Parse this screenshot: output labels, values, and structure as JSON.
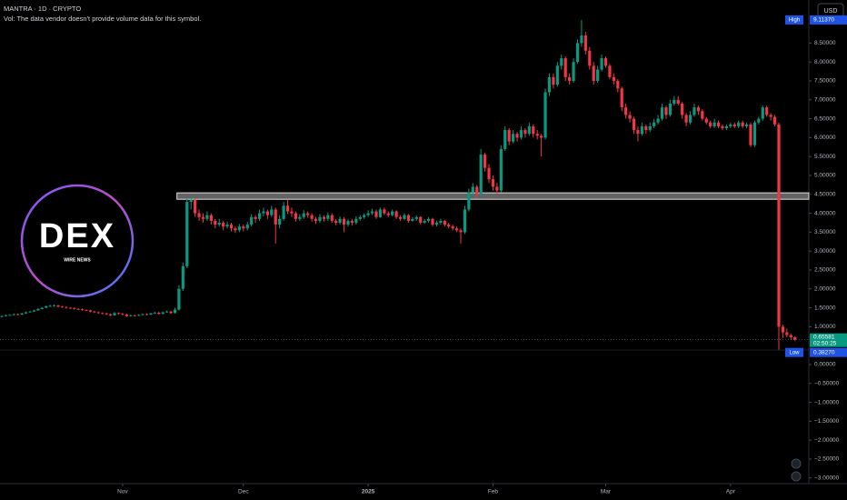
{
  "chart_data": {
    "type": "candlestick",
    "title": "MANTRA · 1D · CRYPTO",
    "subtitle": "Vol: The data vendor doesn't provide volume data for this symbol.",
    "currency": "USD",
    "watermark": {
      "title": "DEX",
      "subtitle": "WIRE NEWS"
    },
    "up_color": "#089981",
    "down_color": "#f23645",
    "grid": false,
    "ylim": [
      -3.15,
      9.64
    ],
    "yticks": [
      {
        "value": -3,
        "label": "−3.00000"
      },
      {
        "value": -2.5,
        "label": "−2.50000"
      },
      {
        "value": -2,
        "label": "−2.00000"
      },
      {
        "value": -1.5,
        "label": "−1.50000"
      },
      {
        "value": -1,
        "label": "−1.00000"
      },
      {
        "value": -0.5,
        "label": "−0.50000"
      },
      {
        "value": 0,
        "label": "0.00000"
      },
      {
        "value": 1,
        "label": "1.00000"
      },
      {
        "value": 1.5,
        "label": "1.50000"
      },
      {
        "value": 2,
        "label": "2.00000"
      },
      {
        "value": 2.5,
        "label": "2.50000"
      },
      {
        "value": 3,
        "label": "3.00000"
      },
      {
        "value": 3.5,
        "label": "3.50000"
      },
      {
        "value": 4,
        "label": "4.00000"
      },
      {
        "value": 4.5,
        "label": "4.50000"
      },
      {
        "value": 5,
        "label": "5.00000"
      },
      {
        "value": 5.5,
        "label": "5.50000"
      },
      {
        "value": 6,
        "label": "6.00000"
      },
      {
        "value": 6.5,
        "label": "6.50000"
      },
      {
        "value": 7,
        "label": "7.00000"
      },
      {
        "value": 7.5,
        "label": "7.50000"
      },
      {
        "value": 8,
        "label": "8.00000"
      },
      {
        "value": 8.5,
        "label": "8.50000"
      }
    ],
    "xticks": [
      {
        "value": 30,
        "label": "Nov"
      },
      {
        "value": 60,
        "label": "Dec"
      },
      {
        "value": 91,
        "label": "2025"
      },
      {
        "value": 122,
        "label": "Feb"
      },
      {
        "value": 150,
        "label": "Mar"
      },
      {
        "value": 181,
        "label": "Apr"
      }
    ],
    "zone": [
      4.37,
      4.54
    ],
    "high": {
      "name": "High",
      "value": 9.1137,
      "label": "9.11370"
    },
    "low": {
      "name": "Low",
      "value": 0.3827,
      "label": "0.38270"
    },
    "last": {
      "value": 0.65581,
      "label": "0.65581",
      "countdown": "02:50:25"
    },
    "candles": [
      [
        1.27,
        1.3,
        1.25,
        1.28
      ],
      [
        1.28,
        1.32,
        1.27,
        1.3
      ],
      [
        1.3,
        1.33,
        1.29,
        1.31
      ],
      [
        1.31,
        1.35,
        1.3,
        1.33
      ],
      [
        1.33,
        1.35,
        1.3,
        1.32
      ],
      [
        1.32,
        1.37,
        1.31,
        1.35
      ],
      [
        1.35,
        1.4,
        1.34,
        1.38
      ],
      [
        1.38,
        1.42,
        1.37,
        1.4
      ],
      [
        1.4,
        1.45,
        1.39,
        1.43
      ],
      [
        1.43,
        1.49,
        1.42,
        1.47
      ],
      [
        1.47,
        1.52,
        1.46,
        1.5
      ],
      [
        1.5,
        1.56,
        1.49,
        1.54
      ],
      [
        1.54,
        1.58,
        1.52,
        1.55
      ],
      [
        1.55,
        1.59,
        1.53,
        1.56
      ],
      [
        1.56,
        1.58,
        1.51,
        1.53
      ],
      [
        1.53,
        1.55,
        1.5,
        1.52
      ],
      [
        1.52,
        1.54,
        1.48,
        1.5
      ],
      [
        1.5,
        1.52,
        1.47,
        1.49
      ],
      [
        1.49,
        1.51,
        1.45,
        1.47
      ],
      [
        1.47,
        1.49,
        1.44,
        1.46
      ],
      [
        1.46,
        1.48,
        1.42,
        1.44
      ],
      [
        1.44,
        1.46,
        1.41,
        1.43
      ],
      [
        1.43,
        1.45,
        1.38,
        1.4
      ],
      [
        1.4,
        1.42,
        1.36,
        1.38
      ],
      [
        1.38,
        1.4,
        1.34,
        1.36
      ],
      [
        1.36,
        1.38,
        1.33,
        1.35
      ],
      [
        1.35,
        1.37,
        1.31,
        1.33
      ],
      [
        1.33,
        1.35,
        1.28,
        1.3
      ],
      [
        1.3,
        1.39,
        1.29,
        1.36
      ],
      [
        1.36,
        1.38,
        1.32,
        1.34
      ],
      [
        1.34,
        1.36,
        1.3,
        1.32
      ],
      [
        1.32,
        1.34,
        1.26,
        1.28
      ],
      [
        1.28,
        1.32,
        1.27,
        1.3
      ],
      [
        1.3,
        1.32,
        1.27,
        1.29
      ],
      [
        1.29,
        1.33,
        1.28,
        1.31
      ],
      [
        1.31,
        1.35,
        1.3,
        1.33
      ],
      [
        1.33,
        1.35,
        1.3,
        1.32
      ],
      [
        1.32,
        1.37,
        1.31,
        1.35
      ],
      [
        1.35,
        1.4,
        1.34,
        1.37
      ],
      [
        1.37,
        1.39,
        1.32,
        1.34
      ],
      [
        1.34,
        1.4,
        1.33,
        1.38
      ],
      [
        1.38,
        1.43,
        1.37,
        1.4
      ],
      [
        1.4,
        1.42,
        1.34,
        1.36
      ],
      [
        1.36,
        1.5,
        1.35,
        1.45
      ],
      [
        1.45,
        2.1,
        1.43,
        2.0
      ],
      [
        2.0,
        2.7,
        1.95,
        2.6
      ],
      [
        2.6,
        4.4,
        2.55,
        4.3
      ],
      [
        4.3,
        4.45,
        4.1,
        4.35
      ],
      [
        4.35,
        4.4,
        3.9,
        4.0
      ],
      [
        4.0,
        4.1,
        3.8,
        3.9
      ],
      [
        3.9,
        4.0,
        3.75,
        3.85
      ],
      [
        3.85,
        4.05,
        3.8,
        3.95
      ],
      [
        3.95,
        4.0,
        3.7,
        3.8
      ],
      [
        3.8,
        3.85,
        3.6,
        3.7
      ],
      [
        3.7,
        3.85,
        3.65,
        3.75
      ],
      [
        3.75,
        3.8,
        3.55,
        3.65
      ],
      [
        3.65,
        3.78,
        3.6,
        3.7
      ],
      [
        3.7,
        3.75,
        3.52,
        3.6
      ],
      [
        3.6,
        3.65,
        3.48,
        3.55
      ],
      [
        3.55,
        3.72,
        3.5,
        3.65
      ],
      [
        3.65,
        3.7,
        3.52,
        3.6
      ],
      [
        3.6,
        3.78,
        3.55,
        3.7
      ],
      [
        3.7,
        3.98,
        3.65,
        3.9
      ],
      [
        3.9,
        3.95,
        3.75,
        3.85
      ],
      [
        3.85,
        4.1,
        3.8,
        4.0
      ],
      [
        4.0,
        4.15,
        3.92,
        4.05
      ],
      [
        4.05,
        4.1,
        3.85,
        3.95
      ],
      [
        3.95,
        4.2,
        3.9,
        4.1
      ],
      [
        4.1,
        4.15,
        3.2,
        3.7
      ],
      [
        3.7,
        3.95,
        3.6,
        3.85
      ],
      [
        3.85,
        4.3,
        3.8,
        4.2
      ],
      [
        4.2,
        4.35,
        3.98,
        4.05
      ],
      [
        4.05,
        4.15,
        3.9,
        4.0
      ],
      [
        4.0,
        4.05,
        3.78,
        3.85
      ],
      [
        3.85,
        3.98,
        3.8,
        3.9
      ],
      [
        3.9,
        4.08,
        3.85,
        4.0
      ],
      [
        4.0,
        4.05,
        3.88,
        3.95
      ],
      [
        3.95,
        4.0,
        3.78,
        3.85
      ],
      [
        3.85,
        3.9,
        3.72,
        3.8
      ],
      [
        3.8,
        3.98,
        3.75,
        3.9
      ],
      [
        3.9,
        3.95,
        3.78,
        3.85
      ],
      [
        3.85,
        4.02,
        3.8,
        3.95
      ],
      [
        3.95,
        4.0,
        3.75,
        3.8
      ],
      [
        3.8,
        3.85,
        3.68,
        3.75
      ],
      [
        3.75,
        3.92,
        3.7,
        3.85
      ],
      [
        3.85,
        3.9,
        3.5,
        3.7
      ],
      [
        3.7,
        3.85,
        3.65,
        3.8
      ],
      [
        3.8,
        3.85,
        3.68,
        3.75
      ],
      [
        3.75,
        3.92,
        3.7,
        3.85
      ],
      [
        3.85,
        3.95,
        3.8,
        3.9
      ],
      [
        3.9,
        4.0,
        3.85,
        3.95
      ],
      [
        3.95,
        4.08,
        3.9,
        4.0
      ],
      [
        4.0,
        4.12,
        3.95,
        4.05
      ],
      [
        4.05,
        4.1,
        3.85,
        3.9
      ],
      [
        3.9,
        4.15,
        3.88,
        4.1
      ],
      [
        4.1,
        4.15,
        3.95,
        4.0
      ],
      [
        4.0,
        4.05,
        3.9,
        3.95
      ],
      [
        3.95,
        4.1,
        3.92,
        4.05
      ],
      [
        4.05,
        4.08,
        3.85,
        3.9
      ],
      [
        3.9,
        3.95,
        3.8,
        3.85
      ],
      [
        3.85,
        4.0,
        3.82,
        3.95
      ],
      [
        3.95,
        3.98,
        3.75,
        3.8
      ],
      [
        3.8,
        3.9,
        3.78,
        3.85
      ],
      [
        3.85,
        3.95,
        3.8,
        3.9
      ],
      [
        3.9,
        3.92,
        3.7,
        3.75
      ],
      [
        3.75,
        3.85,
        3.72,
        3.8
      ],
      [
        3.8,
        3.9,
        3.75,
        3.85
      ],
      [
        3.85,
        3.88,
        3.65,
        3.7
      ],
      [
        3.7,
        3.8,
        3.65,
        3.75
      ],
      [
        3.75,
        3.85,
        3.7,
        3.8
      ],
      [
        3.8,
        3.82,
        3.65,
        3.7
      ],
      [
        3.7,
        3.75,
        3.6,
        3.65
      ],
      [
        3.65,
        3.7,
        3.55,
        3.6
      ],
      [
        3.6,
        3.65,
        3.5,
        3.55
      ],
      [
        3.55,
        3.6,
        3.2,
        3.5
      ],
      [
        3.5,
        4.2,
        3.45,
        4.1
      ],
      [
        4.1,
        4.65,
        4.05,
        4.55
      ],
      [
        4.55,
        4.8,
        4.45,
        4.7
      ],
      [
        4.7,
        4.75,
        4.4,
        4.5
      ],
      [
        4.5,
        5.7,
        4.45,
        5.55
      ],
      [
        5.55,
        5.6,
        5.1,
        5.2
      ],
      [
        5.2,
        5.3,
        4.8,
        4.9
      ],
      [
        4.9,
        5.0,
        4.6,
        4.7
      ],
      [
        4.7,
        4.8,
        4.5,
        4.6
      ],
      [
        4.6,
        5.8,
        4.55,
        5.7
      ],
      [
        5.7,
        6.3,
        5.65,
        6.2
      ],
      [
        6.2,
        6.25,
        5.8,
        5.9
      ],
      [
        5.9,
        6.2,
        5.85,
        6.1
      ],
      [
        6.1,
        6.15,
        5.9,
        6.0
      ],
      [
        6.0,
        6.3,
        5.95,
        6.2
      ],
      [
        6.2,
        6.25,
        6.0,
        6.1
      ],
      [
        6.1,
        6.4,
        6.05,
        6.3
      ],
      [
        6.3,
        6.35,
        6.0,
        6.1
      ],
      [
        6.1,
        6.2,
        5.95,
        6.05
      ],
      [
        6.05,
        6.1,
        5.5,
        6.0
      ],
      [
        6.0,
        7.3,
        5.95,
        7.2
      ],
      [
        7.2,
        7.7,
        7.1,
        7.6
      ],
      [
        7.6,
        7.7,
        7.3,
        7.4
      ],
      [
        7.4,
        8.0,
        7.35,
        7.9
      ],
      [
        7.9,
        8.2,
        7.8,
        8.1
      ],
      [
        8.1,
        8.15,
        7.5,
        7.6
      ],
      [
        7.6,
        7.7,
        7.4,
        7.5
      ],
      [
        7.5,
        8.1,
        7.45,
        8.0
      ],
      [
        8.0,
        8.6,
        7.95,
        8.5
      ],
      [
        8.5,
        9.1137,
        8.4,
        8.7
      ],
      [
        8.7,
        8.8,
        8.2,
        8.3
      ],
      [
        8.3,
        8.4,
        7.8,
        7.9
      ],
      [
        7.9,
        8.0,
        7.4,
        7.5
      ],
      [
        7.5,
        7.9,
        7.45,
        7.8
      ],
      [
        7.8,
        8.2,
        7.75,
        8.1
      ],
      [
        8.1,
        8.15,
        7.85,
        7.9
      ],
      [
        7.9,
        7.95,
        7.55,
        7.6
      ],
      [
        7.6,
        7.7,
        7.4,
        7.5
      ],
      [
        7.5,
        7.55,
        7.2,
        7.3
      ],
      [
        7.3,
        7.35,
        6.7,
        6.8
      ],
      [
        6.8,
        6.9,
        6.5,
        6.6
      ],
      [
        6.6,
        6.7,
        6.4,
        6.5
      ],
      [
        6.5,
        6.55,
        6.1,
        6.2
      ],
      [
        6.2,
        6.3,
        5.9,
        6.1
      ],
      [
        6.1,
        6.4,
        6.05,
        6.3
      ],
      [
        6.3,
        6.35,
        6.1,
        6.2
      ],
      [
        6.2,
        6.4,
        6.15,
        6.3
      ],
      [
        6.3,
        6.5,
        6.25,
        6.4
      ],
      [
        6.4,
        6.6,
        6.35,
        6.5
      ],
      [
        6.5,
        6.9,
        6.45,
        6.8
      ],
      [
        6.8,
        6.85,
        6.5,
        6.6
      ],
      [
        6.6,
        7.0,
        6.55,
        6.9
      ],
      [
        6.9,
        7.1,
        6.85,
        7.0
      ],
      [
        7.0,
        7.1,
        6.85,
        6.9
      ],
      [
        6.9,
        6.95,
        6.5,
        6.6
      ],
      [
        6.6,
        6.65,
        6.3,
        6.4
      ],
      [
        6.4,
        6.7,
        6.35,
        6.6
      ],
      [
        6.6,
        6.9,
        6.55,
        6.8
      ],
      [
        6.8,
        6.85,
        6.6,
        6.7
      ],
      [
        6.7,
        6.75,
        6.45,
        6.5
      ],
      [
        6.5,
        6.55,
        6.35,
        6.4
      ],
      [
        6.4,
        6.45,
        6.25,
        6.3
      ],
      [
        6.3,
        6.5,
        6.25,
        6.4
      ],
      [
        6.4,
        6.45,
        6.25,
        6.3
      ],
      [
        6.3,
        6.35,
        6.2,
        6.25
      ],
      [
        6.25,
        6.35,
        6.2,
        6.3
      ],
      [
        6.3,
        6.4,
        6.25,
        6.35
      ],
      [
        6.35,
        6.4,
        6.25,
        6.3
      ],
      [
        6.3,
        6.45,
        6.25,
        6.4
      ],
      [
        6.4,
        6.45,
        6.25,
        6.3
      ],
      [
        6.3,
        6.4,
        6.25,
        6.35
      ],
      [
        6.35,
        6.4,
        5.75,
        5.8
      ],
      [
        5.8,
        6.45,
        5.75,
        6.4
      ],
      [
        6.4,
        6.55,
        6.35,
        6.5
      ],
      [
        6.5,
        6.85,
        6.45,
        6.8
      ],
      [
        6.8,
        6.85,
        6.55,
        6.6
      ],
      [
        6.6,
        6.65,
        6.45,
        6.55
      ],
      [
        6.55,
        6.6,
        6.3,
        6.35
      ],
      [
        6.35,
        6.4,
        0.3827,
        1.0
      ],
      [
        1.0,
        1.05,
        0.7,
        0.85
      ],
      [
        0.85,
        0.95,
        0.72,
        0.78
      ],
      [
        0.78,
        0.82,
        0.65,
        0.72
      ],
      [
        0.72,
        0.75,
        0.62,
        0.65581
      ]
    ]
  }
}
